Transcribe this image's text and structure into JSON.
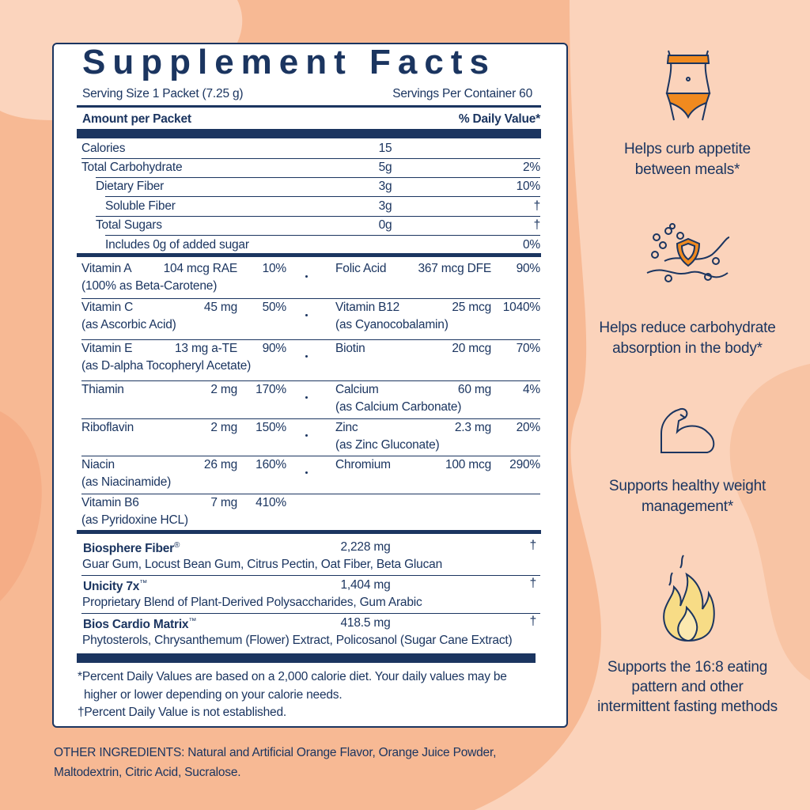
{
  "title": "Supplement Facts",
  "serving_size": "Serving Size 1 Packet (7.25 g)",
  "servings_per_container": "Servings Per Container 60",
  "table_header": {
    "amount": "Amount per Packet",
    "daily_value": "% Daily Value*"
  },
  "nutrients": [
    {
      "name": "Calories",
      "amount": "15"
    },
    {
      "name": "Total Carbohydrate",
      "amount": "5g",
      "dv": "2%"
    },
    {
      "name": "Dietary Fiber",
      "amount": "3g",
      "dv": "10%"
    },
    {
      "name": "Soluble Fiber",
      "amount": "3g",
      "dv": "†"
    },
    {
      "name": "Total Sugars",
      "amount": "0g",
      "dv": "†"
    },
    {
      "name": "Includes 0g of added sugar",
      "dv": "0%"
    }
  ],
  "vitamins": [
    {
      "left": {
        "name": "Vitamin A",
        "amount": "104 mcg RAE",
        "dv": "10%",
        "note": "(100% as Beta-Carotene)"
      },
      "right": {
        "name": "Folic Acid",
        "amount": "367 mcg DFE",
        "dv": "90%"
      }
    },
    {
      "left": {
        "name": "Vitamin C",
        "amount": "45 mg",
        "dv": "50%",
        "note": "(as Ascorbic Acid)"
      },
      "right": {
        "name": "Vitamin B12",
        "amount": "25 mcg",
        "dv": "1040%",
        "note": "(as Cyanocobalamin)"
      }
    },
    {
      "left": {
        "name": "Vitamin E",
        "amount": "13 mg a-TE",
        "dv": "90%",
        "note": "(as D-alpha Tocopheryl Acetate)"
      },
      "right": {
        "name": "Biotin",
        "amount": "20 mcg",
        "dv": "70%"
      }
    },
    {
      "left": {
        "name": "Thiamin",
        "amount": "2 mg",
        "dv": "170%"
      },
      "right": {
        "name": "Calcium",
        "amount": "60 mg",
        "dv": "4%",
        "note": "(as Calcium Carbonate)"
      }
    },
    {
      "left": {
        "name": "Riboflavin",
        "amount": "2 mg",
        "dv": "150%"
      },
      "right": {
        "name": "Zinc",
        "amount": "2.3 mg",
        "dv": "20%",
        "note": "(as Zinc Gluconate)"
      }
    },
    {
      "left": {
        "name": "Niacin",
        "amount": "26 mg",
        "dv": "160%",
        "note": "(as Niacinamide)"
      },
      "right": {
        "name": "Chromium",
        "amount": "100 mcg",
        "dv": "290%"
      }
    },
    {
      "left": {
        "name": "Vitamin B6",
        "amount": "7 mg",
        "dv": "410%",
        "note": "(as Pyridoxine HCL)"
      }
    }
  ],
  "blends": [
    {
      "name": "Biosphere Fiber",
      "mark": "®",
      "amount": "2,228 mg",
      "dv": "†",
      "description": "Guar Gum, Locust Bean Gum, Citrus Pectin, Oat Fiber, Beta Glucan"
    },
    {
      "name": "Unicity 7x",
      "mark": "™",
      "amount": "1,404 mg",
      "dv": "†",
      "description": "Proprietary Blend of Plant-Derived Polysaccharides, Gum Arabic"
    },
    {
      "name": "Bios Cardio Matrix",
      "mark": "™",
      "amount": "418.5 mg",
      "dv": "†",
      "description": "Phytosterols, Chrysanthemum (Flower) Extract, Policosanol (Sugar Cane Extract)"
    }
  ],
  "footnotes": [
    "*Percent Daily Values are based on a 2,000 calorie diet. Your daily values may be",
    "higher or lower depending on your calorie needs.",
    "†Percent Daily Value is not established."
  ],
  "other_ingredients": [
    "OTHER INGREDIENTS: Natural and Artificial Orange Flavor, Orange Juice Powder,",
    "Maltodextrin, Citric Acid, Sucralose."
  ],
  "benefits": [
    {
      "lines": [
        "Helps curb appetite",
        "between meals*"
      ]
    },
    {
      "lines": [
        "Helps reduce carbohydrate",
        "absorption in the body*"
      ]
    },
    {
      "lines": [
        "Supports healthy weight",
        "management*"
      ]
    },
    {
      "lines": [
        "Supports the 16:8 eating",
        "pattern and other",
        "intermittent fasting methods"
      ]
    }
  ]
}
